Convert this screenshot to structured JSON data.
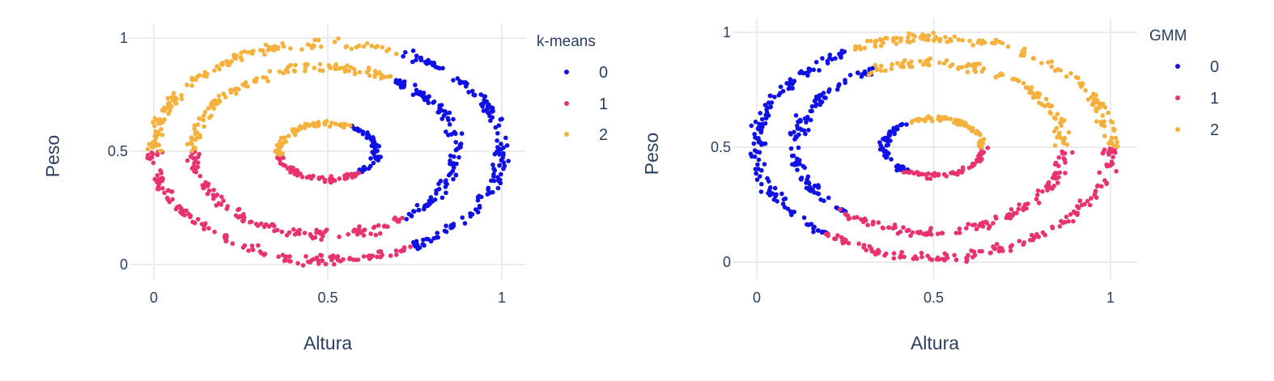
{
  "chart_data": [
    {
      "type": "scatter",
      "title": "",
      "xlabel": "Altura",
      "ylabel": "Peso",
      "xlim": [
        0,
        1
      ],
      "ylim": [
        0,
        1
      ],
      "xticks": [
        "0",
        "0.5",
        "1"
      ],
      "yticks": [
        "0",
        "0.5",
        "1"
      ],
      "grid": true,
      "legend": {
        "title": "k-means",
        "placement": "right",
        "entries": [
          "0",
          "1",
          "2"
        ]
      },
      "colors": {
        "0": "#1010e6",
        "1": "#e8336f",
        "2": "#f5b13d"
      },
      "rings": [
        {
          "center": [
            0.5,
            0.5
          ],
          "radius": [
            0.5,
            0.48
          ],
          "segments_deg": {
            "0": [
              [
                -60,
                65
              ]
            ],
            "2": [
              [
                65,
                180
              ]
            ],
            "1": [
              [
                180,
                300
              ]
            ]
          }
        },
        {
          "center": [
            0.49,
            0.5
          ],
          "radius": [
            0.38,
            0.37
          ],
          "segments_deg": {
            "0": [
              [
                -55,
                60
              ]
            ],
            "2": [
              [
                60,
                180
              ]
            ],
            "1": [
              [
                180,
                305
              ]
            ]
          }
        },
        {
          "center": [
            0.5,
            0.5
          ],
          "radius": [
            0.14,
            0.125
          ],
          "segments_deg": {
            "0": [
              [
                -50,
                60
              ]
            ],
            "2": [
              [
                60,
                190
              ]
            ],
            "1": [
              [
                190,
                310
              ]
            ]
          }
        }
      ]
    },
    {
      "type": "scatter",
      "title": "",
      "xlabel": "Altura",
      "ylabel": "Peso",
      "xlim": [
        0,
        1
      ],
      "ylim": [
        0,
        1
      ],
      "xticks": [
        "0",
        "0.5",
        "1"
      ],
      "yticks": [
        "0",
        "0.5",
        "1"
      ],
      "grid": true,
      "legend": {
        "title": "GMM",
        "placement": "right",
        "entries": [
          "0",
          "1",
          "2"
        ]
      },
      "colors": {
        "0": "#1010e6",
        "1": "#e8336f",
        "2": "#f5b13d"
      },
      "rings": [
        {
          "center": [
            0.5,
            0.5
          ],
          "radius": [
            0.5,
            0.48
          ],
          "segments_deg": {
            "2": [
              [
                0,
                118
              ]
            ],
            "0": [
              [
                118,
                233
              ]
            ],
            "1": [
              [
                233,
                360
              ]
            ]
          }
        },
        {
          "center": [
            0.49,
            0.5
          ],
          "radius": [
            0.38,
            0.37
          ],
          "segments_deg": {
            "2": [
              [
                0,
                117
              ]
            ],
            "0": [
              [
                117,
                230
              ]
            ],
            "1": [
              [
                230,
                360
              ]
            ]
          }
        },
        {
          "center": [
            0.5,
            0.5
          ],
          "radius": [
            0.14,
            0.125
          ],
          "segments_deg": {
            "2": [
              [
                0,
                117
              ]
            ],
            "0": [
              [
                117,
                235
              ]
            ],
            "1": [
              [
                235,
                360
              ]
            ]
          }
        }
      ]
    }
  ]
}
